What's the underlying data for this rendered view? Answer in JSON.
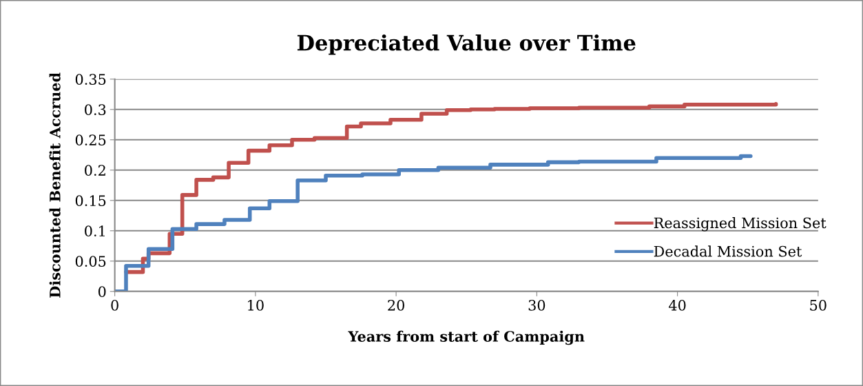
{
  "chart_data": {
    "type": "step",
    "title": "Depreciated Value over Time",
    "xlabel": "Years from start of Campaign",
    "ylabel": "Discounted Benefit Accrued",
    "series": [
      {
        "name": "Reassigned Mission Set",
        "color": "#c0504d",
        "x": [
          0.8,
          2.0,
          2.4,
          3.9,
          4.8,
          5.8,
          7.0,
          8.1,
          9.5,
          11.0,
          12.6,
          14.2,
          16.5,
          17.5,
          19.6,
          21.8,
          23.6,
          25.3,
          27.0,
          29.5,
          33.0,
          38.0,
          40.5,
          47.0
        ],
        "values": [
          0.032,
          0.054,
          0.063,
          0.095,
          0.159,
          0.184,
          0.188,
          0.212,
          0.232,
          0.241,
          0.25,
          0.253,
          0.272,
          0.277,
          0.283,
          0.293,
          0.299,
          0.3,
          0.301,
          0.302,
          0.303,
          0.305,
          0.308,
          0.309
        ]
      },
      {
        "name": "Decadal Mission Set",
        "color": "#4f81bd",
        "x": [
          0,
          0.8,
          2.4,
          4.1,
          5.8,
          7.8,
          9.6,
          11.0,
          13.0,
          15.0,
          17.6,
          20.2,
          23.0,
          26.7,
          30.8,
          33.0,
          38.5,
          44.5,
          45.2
        ],
        "values": [
          0,
          0.042,
          0.07,
          0.103,
          0.111,
          0.118,
          0.137,
          0.149,
          0.183,
          0.191,
          0.193,
          0.2,
          0.204,
          0.209,
          0.213,
          0.214,
          0.22,
          0.223,
          0.223
        ]
      }
    ],
    "xlim": [
      0,
      50
    ],
    "xticks": [
      0,
      10,
      20,
      30,
      40,
      50
    ],
    "ylim": [
      0,
      0.35
    ],
    "yticks": [
      0,
      0.05,
      0.1,
      0.15,
      0.2,
      0.25,
      0.3,
      0.35
    ],
    "grid": "y",
    "legend": "right",
    "line_style": "solid"
  }
}
